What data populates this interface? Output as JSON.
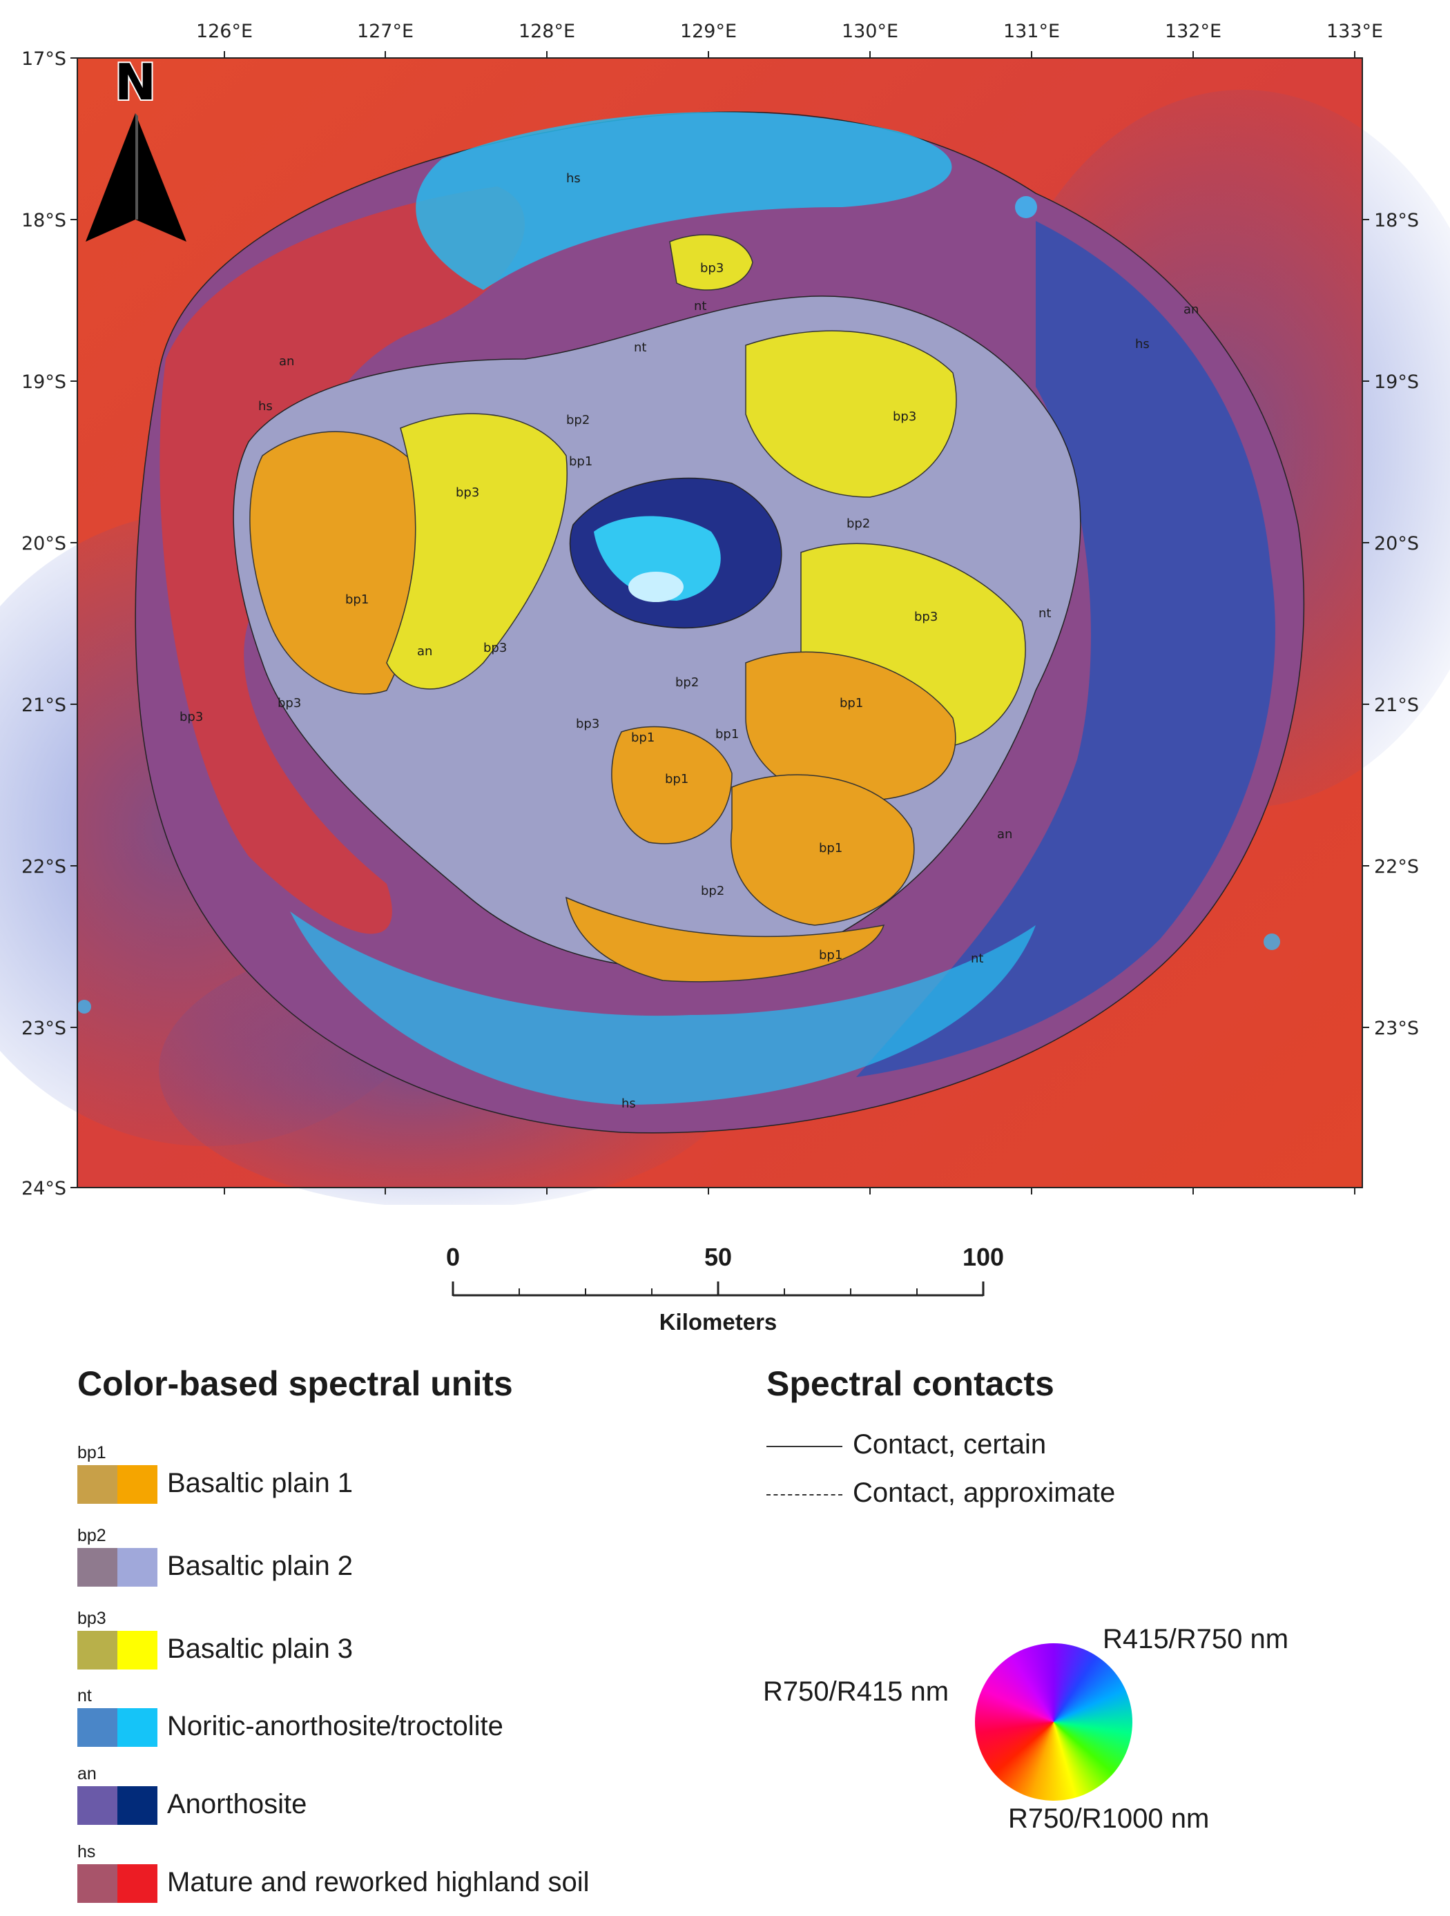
{
  "map": {
    "north_label": "N",
    "lon_labels": [
      "126°E",
      "127°E",
      "128°E",
      "129°E",
      "130°E",
      "131°E",
      "132°E",
      "133°E"
    ],
    "lat_labels": [
      "17°S",
      "18°S",
      "19°S",
      "20°S",
      "21°S",
      "22°S",
      "23°S",
      "24°S"
    ],
    "lat_labels_right": [
      "18°S",
      "19°S",
      "20°S",
      "21°S",
      "22°S",
      "23°S"
    ],
    "unit_labels": [
      "bp1",
      "bp1",
      "bp1",
      "bp1",
      "bp1",
      "bp1",
      "bp1",
      "bp1",
      "bp2",
      "bp2",
      "bp2",
      "bp2",
      "bp3",
      "bp3",
      "bp3",
      "bp3",
      "bp3",
      "bp3",
      "bp3",
      "bp3",
      "nt",
      "nt",
      "nt",
      "nt",
      "an",
      "an",
      "an",
      "an",
      "hs",
      "hs",
      "hs",
      "hs"
    ],
    "colors": {
      "highland_red": "#e8452a",
      "highland_blue": "#4a5fc8",
      "yellow": "#e6e02a",
      "orange": "#e8a020",
      "lavender": "#9b9dc8",
      "cyan": "#33c0ee",
      "navy": "#22308a"
    }
  },
  "scale_bar": {
    "labels": [
      "0",
      "50",
      "100"
    ],
    "unit": "Kilometers"
  },
  "legend": {
    "units_title": "Color-based spectral units",
    "units": [
      {
        "code": "bp1",
        "name": "Basaltic plain 1",
        "color": "#f5a500",
        "tex": "#c8a048"
      },
      {
        "code": "bp2",
        "name": "Basaltic plain 2",
        "color": "#a0a8da",
        "tex": "#8f7a8e"
      },
      {
        "code": "bp3",
        "name": "Basaltic plain 3",
        "color": "#ffff00",
        "tex": "#b8b04a"
      },
      {
        "code": "nt",
        "name": "Noritic-anorthosite/troctolite",
        "color": "#15c4f8",
        "tex": "#4a86c8"
      },
      {
        "code": "an",
        "name": "Anorthosite",
        "color": "#022b7a",
        "tex": "#6a5aa8"
      },
      {
        "code": "hs",
        "name": "Mature and reworked highland soil",
        "color": "#ec1c24",
        "tex": "#a8546a"
      }
    ],
    "contacts_title": "Spectral contacts",
    "contacts": [
      {
        "label": "Contact, certain",
        "style": "solid"
      },
      {
        "label": "Contact, approximate",
        "style": "dashed"
      }
    ],
    "wheel_labels": {
      "top": "R415/R750 nm",
      "left": "R750/R415 nm",
      "bottom": "R750/R1000 nm"
    }
  }
}
